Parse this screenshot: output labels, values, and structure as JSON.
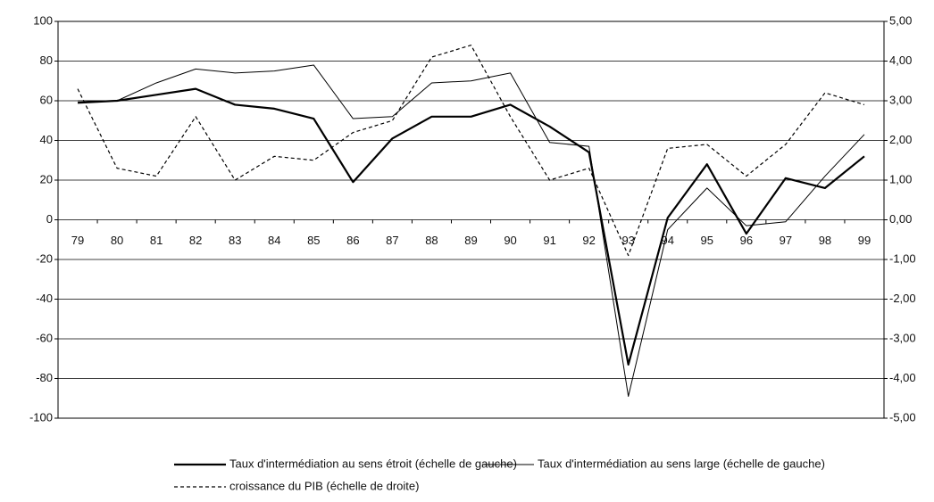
{
  "chart_data": {
    "type": "line",
    "categories": [
      "79",
      "80",
      "81",
      "82",
      "83",
      "84",
      "85",
      "86",
      "87",
      "88",
      "89",
      "90",
      "91",
      "92",
      "93",
      "94",
      "95",
      "96",
      "97",
      "98",
      "99"
    ],
    "series": [
      {
        "name": "Taux d'intermédiation au sens étroit (échelle de gauche)",
        "color": "#000000",
        "line_style": "solid",
        "line_width": 2.2,
        "values": [
          59,
          60,
          63,
          66,
          58,
          56,
          51,
          19,
          41,
          52,
          52,
          58,
          47,
          34,
          -73,
          1,
          28,
          -7,
          21,
          16,
          32
        ]
      },
      {
        "name": "Taux d'intermédiation au sens large (échelle de gauche)",
        "color": "#000000",
        "line_style": "solid",
        "line_width": 1,
        "values": [
          60,
          60,
          69,
          76,
          74,
          75,
          78,
          51,
          52,
          69,
          70,
          74,
          39,
          37,
          -89,
          -5,
          16,
          -3,
          -1,
          22,
          43
        ]
      },
      {
        "name": "croissance du PIB (échelle de droite)",
        "color": "#000000",
        "line_style": "dotted",
        "line_width": 1.2,
        "axis": "y2",
        "values": [
          3.3,
          1.3,
          1.1,
          2.6,
          1.0,
          1.6,
          1.5,
          2.2,
          2.5,
          4.1,
          4.4,
          2.6,
          1.0,
          1.3,
          -0.9,
          1.8,
          1.9,
          1.1,
          1.9,
          3.2,
          2.9
        ]
      }
    ],
    "ylim": [
      -100,
      100
    ],
    "yticks": [
      -100,
      -80,
      -60,
      -40,
      -20,
      0,
      20,
      40,
      60,
      80,
      100
    ],
    "y2lim": [
      -5,
      5
    ],
    "y2ticks": [
      {
        "value": -5,
        "label": "-5,00"
      },
      {
        "value": -4,
        "label": "-4,00"
      },
      {
        "value": -3,
        "label": "-3,00"
      },
      {
        "value": -2,
        "label": "-2,00"
      },
      {
        "value": -1,
        "label": "-1,00"
      },
      {
        "value": 0,
        "label": "0,00"
      },
      {
        "value": 1,
        "label": "1,00"
      },
      {
        "value": 2,
        "label": "2,00"
      },
      {
        "value": 3,
        "label": "3,00"
      },
      {
        "value": 4,
        "label": "4,00"
      },
      {
        "value": 5,
        "label": "5,00"
      }
    ],
    "grid": true
  }
}
